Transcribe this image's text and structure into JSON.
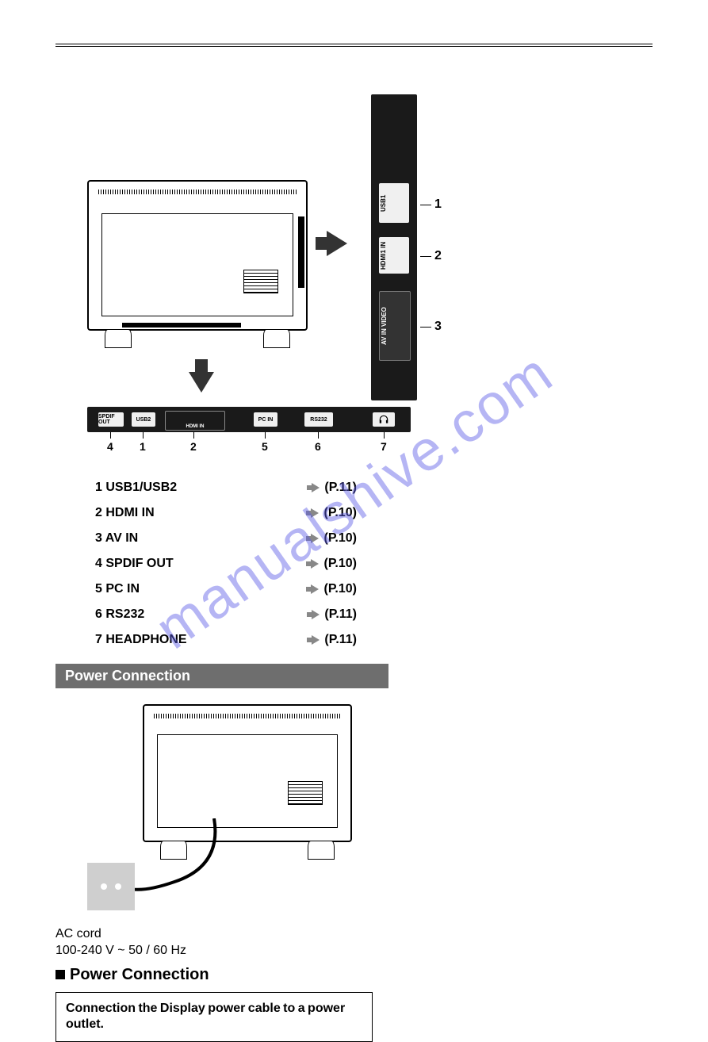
{
  "colors": {
    "panel_bg": "#1a1a1a",
    "port_bg": "#f0f0f0",
    "section_bar_bg": "#6e6e6e",
    "section_bar_text": "#ffffff",
    "arrow_gray": "#888888",
    "watermark_color": "rgba(90,90,230,0.45)",
    "page_bg": "#ffffff",
    "text_color": "#000000"
  },
  "side_panel": {
    "ports": {
      "usb": {
        "label": "USB1"
      },
      "hdmi": {
        "label": "HDMI1 IN"
      },
      "av": {
        "label": "AV IN  VIDEO"
      }
    },
    "callouts": {
      "c1": "1",
      "c2": "2",
      "c3": "3"
    }
  },
  "bottom_panel": {
    "ports": {
      "spdif": "SPDIF OUT",
      "usb2": "USB2",
      "hdmi_wrap": "HDMI IN",
      "pc": "PC IN",
      "rs": "RS232",
      "head": "♫"
    },
    "numbers": {
      "n4": "4",
      "n1": "1",
      "n2": "2",
      "n5": "5",
      "n6": "6",
      "n7": "7"
    }
  },
  "port_list": [
    {
      "num": "1",
      "name": "USB1/USB2",
      "ref": "(P.11)"
    },
    {
      "num": "2",
      "name": "HDMI IN",
      "ref": "(P.10)"
    },
    {
      "num": "3",
      "name": "AV IN",
      "ref": "(P.10)"
    },
    {
      "num": "4",
      "name": "SPDIF OUT",
      "ref": "(P.10)"
    },
    {
      "num": "5",
      "name": "PC IN",
      "ref": "(P.10)"
    },
    {
      "num": "6",
      "name": "RS232",
      "ref": "(P.11)"
    },
    {
      "num": "7",
      "name": "HEADPHONE",
      "ref": "(P.11)"
    }
  ],
  "section_bar_title": "Power Connection",
  "ac_cord": {
    "line1": "AC cord",
    "line2": "100-240 V ~ 50 / 60 Hz"
  },
  "power_subheading": "Power Connection",
  "note_box": "Connection the Display power cable to a power outlet.",
  "watermark": "manualshive.com"
}
